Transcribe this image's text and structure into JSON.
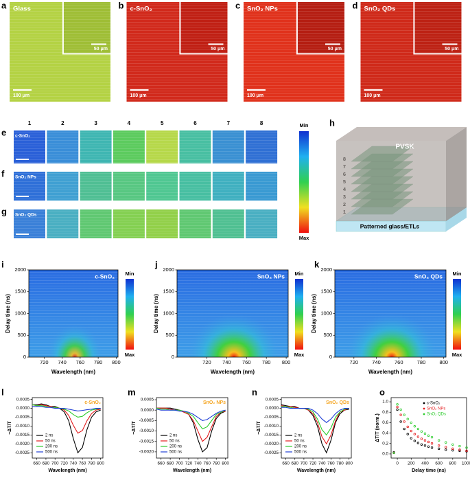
{
  "panels": {
    "microscopy": [
      {
        "label": "a",
        "name": "Glass",
        "scale": "100 μm",
        "inset_scale": "50 μm",
        "color": "#b4d244",
        "inset_color": "#9fbe36"
      },
      {
        "label": "b",
        "name": "c-SnO₂",
        "scale": "100 μm",
        "inset_scale": "50 μm",
        "color": "#d12a1c",
        "inset_color": "#c02014"
      },
      {
        "label": "c",
        "name": "SnO₂ NPs",
        "scale": "100 μm",
        "inset_scale": "50 μm",
        "color": "#e0321c",
        "inset_color": "#b51e12"
      },
      {
        "label": "d",
        "name": "SnO₂ QDs",
        "scale": "100 μm",
        "inset_scale": "50 μm",
        "color": "#cf2a1a",
        "inset_color": "#bd2214"
      }
    ],
    "maps": {
      "columns": [
        "1",
        "2",
        "3",
        "4",
        "5",
        "6",
        "7",
        "8"
      ],
      "rows": [
        {
          "label": "e",
          "name": "c-SnO₂",
          "colors": [
            "#2a60d8",
            "#3a8ed8",
            "#3fb6b2",
            "#5ccb5e",
            "#b6d84a",
            "#48bfa2",
            "#3a90d2",
            "#3070d4"
          ]
        },
        {
          "label": "f",
          "name": "SnO₂ NPs",
          "colors": [
            "#2f70d8",
            "#40a0d2",
            "#50bf94",
            "#58c782",
            "#50c792",
            "#48bfa2",
            "#40b0c0",
            "#3a9ad2"
          ]
        },
        {
          "label": "g",
          "name": "SnO₂ QDs",
          "colors": [
            "#3a80d8",
            "#4aafc2",
            "#60c872",
            "#84d052",
            "#92d04a",
            "#60c872",
            "#50c092",
            "#4aafc2"
          ]
        }
      ],
      "colorbar": [
        "Min",
        "Max"
      ]
    },
    "schematic": {
      "label": "h",
      "top": "PVSK",
      "bottom": "Patterned glass/ETLs",
      "layers": [
        "1",
        "2",
        "3",
        "4",
        "5",
        "6",
        "7",
        "8"
      ]
    }
  },
  "chart_data": [
    {
      "type": "heatmap",
      "label": "i",
      "annotation": "c-SnO₂",
      "xlabel": "Wavelength (nm)",
      "ylabel": "Delay time (ns)",
      "xlim": [
        703,
        802
      ],
      "xticks": [
        720,
        740,
        760,
        780,
        800
      ],
      "ylim": [
        0,
        2000
      ],
      "yticks": [
        0,
        500,
        1000,
        1500,
        2000
      ],
      "colorbar": [
        "Min",
        "Max"
      ]
    },
    {
      "type": "heatmap",
      "label": "j",
      "annotation": "SnO₂ NPs",
      "xlabel": "Wavelength (nm)",
      "ylabel": "Delay time (ns)",
      "xlim": [
        690,
        802
      ],
      "xticks": [
        720,
        740,
        760,
        780,
        800
      ],
      "ylim": [
        0,
        2000
      ],
      "yticks": [
        0,
        500,
        1000,
        1500,
        2000
      ],
      "colorbar": [
        "Min",
        "Max"
      ]
    },
    {
      "type": "heatmap",
      "label": "k",
      "annotation": "SnO₂ QDs",
      "xlabel": "Wavelength (nm)",
      "ylabel": "Delay time (ns)",
      "xlim": [
        703,
        802
      ],
      "xticks": [
        720,
        740,
        760,
        780,
        800
      ],
      "ylim": [
        0,
        2000
      ],
      "yticks": [
        0,
        500,
        1000,
        1500,
        2000
      ],
      "colorbar": [
        "Min",
        "Max"
      ]
    },
    {
      "type": "line",
      "label": "l",
      "annotation": "c-SnO₂",
      "annotation_color": "#f5a623",
      "xlabel": "Wavelength (nm)",
      "ylabel": "−ΔT/T",
      "legend": "lower left",
      "x": [
        650,
        660,
        670,
        680,
        690,
        700,
        710,
        720,
        730,
        740,
        750,
        760,
        770,
        780,
        790,
        800
      ],
      "xlim": [
        650,
        805
      ],
      "xticks": [
        660,
        680,
        700,
        720,
        740,
        760,
        780,
        800
      ],
      "ylim": [
        -0.0028,
        0.0006
      ],
      "yticks": [
        0.0005,
        {
          "value": 0,
          "label": "0.0000"
        },
        -0.0005,
        {
          "value": -0.001,
          "label": "-0.0010"
        },
        -0.0015,
        {
          "value": -0.002,
          "label": "-0.0020"
        },
        -0.0025
      ],
      "series": [
        {
          "name": "2 ns",
          "color": "#000000",
          "values": [
            0.0002,
            0.0002,
            0.00025,
            0.0002,
            0.0001,
            0.0001,
            0,
            -0.0002,
            -0.0007,
            -0.0017,
            -0.0025,
            -0.0022,
            -0.0012,
            -0.0005,
            -0.0002,
            -0.0001
          ]
        },
        {
          "name": "50 ns",
          "color": "#e41a1c",
          "values": [
            0.0002,
            0.00015,
            0.0002,
            0.00015,
            0.0001,
            5e-05,
            0,
            -0.0001,
            -0.0004,
            -0.00095,
            -0.0014,
            -0.00125,
            -0.0007,
            -0.0003,
            -0.0001,
            -5e-05
          ]
        },
        {
          "name": "200 ns",
          "color": "#2ecc2e",
          "values": [
            0.0002,
            0.00015,
            0.00015,
            0.0001,
            5e-05,
            5e-05,
            0,
            -5e-05,
            -0.00015,
            -0.00035,
            -0.0005,
            -0.00045,
            -0.00025,
            -0.0001,
            -5e-05,
            0
          ]
        },
        {
          "name": "500 ns",
          "color": "#1f3fd6",
          "values": [
            0.0001,
            0.0001,
            0.0001,
            5e-05,
            5e-05,
            0,
            0,
            0,
            -5e-05,
            -0.0001,
            -0.00015,
            -0.00012,
            -8e-05,
            -5e-05,
            0,
            0
          ]
        }
      ]
    },
    {
      "type": "line",
      "label": "m",
      "annotation": "SnO₂ NPs",
      "annotation_color": "#f5a623",
      "xlabel": "Wavelength (nm)",
      "ylabel": "−ΔT/T",
      "legend": "lower left",
      "x": [
        650,
        660,
        670,
        680,
        690,
        700,
        710,
        720,
        730,
        740,
        750,
        760,
        770,
        780,
        790,
        800
      ],
      "xlim": [
        650,
        805
      ],
      "xticks": [
        660,
        680,
        700,
        720,
        740,
        760,
        780,
        800
      ],
      "ylim": [
        -0.0023,
        0.0006
      ],
      "yticks": [
        0.0005,
        {
          "value": 0,
          "label": "0.0000"
        },
        -0.0005,
        {
          "value": -0.001,
          "label": "-0.0010"
        },
        -0.0015,
        {
          "value": -0.002,
          "label": "-0.0020"
        }
      ],
      "series": [
        {
          "name": "2 ns",
          "color": "#000000",
          "values": [
            0.0001,
            0.0001,
            0.0001,
            0.0001,
            5e-05,
            0,
            -0.0001,
            -0.0002,
            -0.0006,
            -0.0014,
            -0.002,
            -0.0018,
            -0.001,
            -0.0004,
            -0.00015,
            -5e-05
          ]
        },
        {
          "name": "50 ns",
          "color": "#e41a1c",
          "values": [
            0.0001,
            0.0001,
            0.0001,
            5e-05,
            0,
            0,
            -0.0001,
            -0.0002,
            -0.0005,
            -0.001,
            -0.0015,
            -0.0013,
            -0.0008,
            -0.0003,
            -0.0001,
            -5e-05
          ]
        },
        {
          "name": "200 ns",
          "color": "#2ecc2e",
          "values": [
            0.0001,
            5e-05,
            5e-05,
            0,
            0,
            0,
            -5e-05,
            -0.00015,
            -0.0003,
            -0.0006,
            -0.0009,
            -0.0008,
            -0.0005,
            -0.0002,
            -0.0001,
            0
          ]
        },
        {
          "name": "500 ns",
          "color": "#1f3fd6",
          "values": [
            5e-05,
            0,
            0,
            0,
            0,
            -5e-05,
            -5e-05,
            -0.0001,
            -0.0002,
            -0.00035,
            -0.0005,
            -0.00045,
            -0.0003,
            -0.00015,
            -5e-05,
            0
          ]
        }
      ]
    },
    {
      "type": "line",
      "label": "n",
      "annotation": "SnO₂ QDs",
      "annotation_color": "#f5a623",
      "xlabel": "Wavelength (nm)",
      "ylabel": "−ΔT/T",
      "legend": "lower left",
      "x": [
        650,
        660,
        670,
        680,
        690,
        700,
        710,
        720,
        730,
        740,
        750,
        760,
        770,
        780,
        790,
        800
      ],
      "xlim": [
        650,
        805
      ],
      "xticks": [
        660,
        680,
        700,
        720,
        740,
        760,
        780,
        800
      ],
      "ylim": [
        -0.0028,
        0.0006
      ],
      "yticks": [
        0.0005,
        {
          "value": 0,
          "label": "0.0000"
        },
        -0.0005,
        {
          "value": -0.001,
          "label": "-0.0010"
        },
        -0.0015,
        {
          "value": -0.002,
          "label": "-0.0020"
        },
        -0.0025
      ],
      "series": [
        {
          "name": "2 ns",
          "color": "#000000",
          "values": [
            0.0002,
            0.00015,
            0.0001,
            0.0001,
            0,
            0,
            -0.0001,
            -0.0004,
            -0.001,
            -0.002,
            -0.0025,
            -0.0018,
            -0.0008,
            -0.0003,
            -0.0001,
            -5e-05
          ]
        },
        {
          "name": "50 ns",
          "color": "#e41a1c",
          "values": [
            0.00015,
            0.0001,
            0.0001,
            5e-05,
            0,
            0,
            -0.0001,
            -0.0003,
            -0.0008,
            -0.0016,
            -0.002,
            -0.0015,
            -0.0007,
            -0.0002,
            -0.0001,
            0
          ]
        },
        {
          "name": "200 ns",
          "color": "#2ecc2e",
          "values": [
            0.0001,
            0.0001,
            5e-05,
            0,
            0,
            0,
            -5e-05,
            -0.0002,
            -0.0006,
            -0.0012,
            -0.0015,
            -0.0011,
            -0.0005,
            -0.0002,
            -5e-05,
            0
          ]
        },
        {
          "name": "500 ns",
          "color": "#1f3fd6",
          "values": [
            5e-05,
            5e-05,
            0,
            0,
            0,
            0,
            0,
            -0.0001,
            -0.0003,
            -0.0006,
            -0.0008,
            -0.0006,
            -0.0003,
            -0.0001,
            0,
            0
          ]
        }
      ]
    },
    {
      "type": "scatter",
      "label": "o",
      "xlabel": "Delay time (ns)",
      "ylabel": "ΔT/T (norm.)",
      "legend": "upper right",
      "x": [
        -50,
        0,
        50,
        100,
        150,
        200,
        250,
        300,
        350,
        400,
        450,
        500,
        600,
        700,
        800,
        900,
        1000
      ],
      "xlim": [
        -90,
        1000
      ],
      "xticks": [
        0,
        200,
        400,
        600,
        800,
        1000
      ],
      "ylim": [
        -0.08,
        1.08
      ],
      "yticks": [
        {
          "value": 0,
          "label": "0.0"
        },
        0.2,
        0.4,
        0.6,
        0.8,
        {
          "value": 1,
          "label": "1.0"
        }
      ],
      "series": [
        {
          "name": "c-SnO₂",
          "color": "#000000",
          "values": [
            0.03,
            0.85,
            0.62,
            0.48,
            0.38,
            0.3,
            0.25,
            0.21,
            0.18,
            0.16,
            0.14,
            0.12,
            0.1,
            0.08,
            0.07,
            0.06,
            0.05
          ]
        },
        {
          "name": "SnO₂ NPs",
          "color": "#e41a1c",
          "values": [
            0.02,
            0.9,
            0.75,
            0.62,
            0.52,
            0.44,
            0.38,
            0.33,
            0.29,
            0.26,
            0.23,
            0.2,
            0.16,
            0.13,
            0.1,
            0.08,
            0.06
          ]
        },
        {
          "name": "SnO₂ QDs",
          "color": "#2ecc2e",
          "values": [
            0.02,
            0.95,
            0.85,
            0.75,
            0.67,
            0.6,
            0.53,
            0.48,
            0.43,
            0.39,
            0.35,
            0.32,
            0.26,
            0.22,
            0.18,
            0.15,
            0.12
          ]
        }
      ]
    }
  ]
}
